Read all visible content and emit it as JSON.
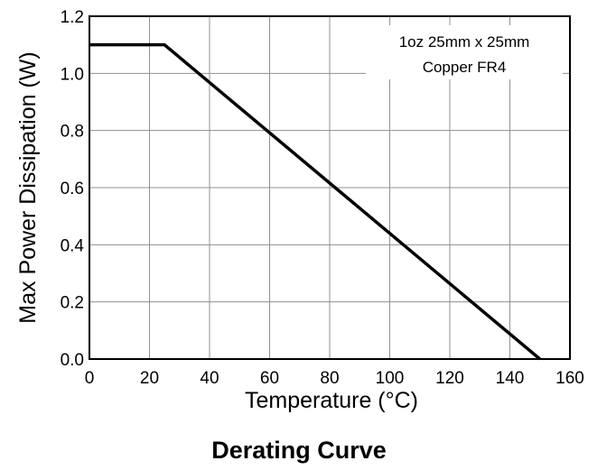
{
  "chart_data": {
    "type": "line",
    "title": "Derating Curve",
    "xlabel": "Temperature (°C)",
    "ylabel": "Max Power Dissipation (W)",
    "xlim": [
      0,
      160
    ],
    "ylim": [
      0,
      1.2
    ],
    "x_ticks": [
      "0",
      "20",
      "40",
      "60",
      "80",
      "100",
      "120",
      "140",
      "160"
    ],
    "y_ticks": [
      "0.0",
      "0.2",
      "0.4",
      "0.6",
      "0.8",
      "1.0",
      "1.2"
    ],
    "grid": true,
    "series": [
      {
        "x": [
          0,
          25,
          150
        ],
        "y": [
          1.1,
          1.1,
          0
        ],
        "color": "#000000"
      }
    ],
    "annotation_lines": [
      "1oz 25mm x 25mm",
      "Copper FR4"
    ]
  }
}
